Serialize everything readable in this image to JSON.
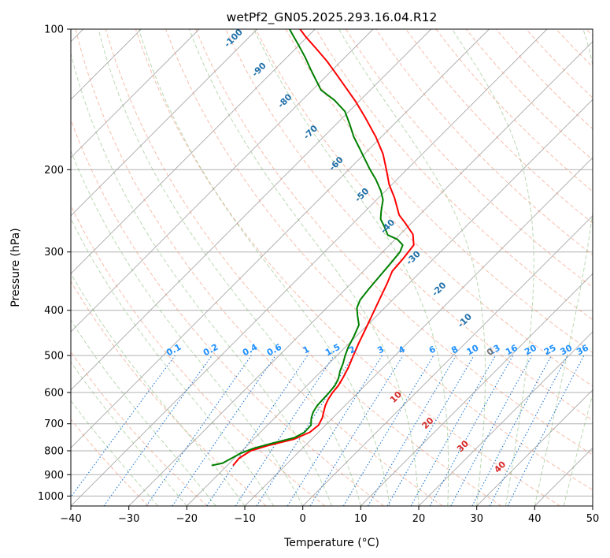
{
  "chart_data": {
    "type": "line",
    "title": "wetPf2_GN05.2025.293.16.04.R12",
    "xlabel": "Temperature (°C)",
    "ylabel": "Pressure (hPa)",
    "xlim": [
      -40,
      50
    ],
    "ylim": [
      1050,
      100
    ],
    "x_ticks": [
      -40,
      -30,
      -20,
      -10,
      0,
      10,
      20,
      30,
      40,
      50
    ],
    "x_tick_labels": [
      "−40",
      "−30",
      "−20",
      "−10",
      "0",
      "10",
      "20",
      "30",
      "40",
      "50"
    ],
    "y_ticks": [
      100,
      200,
      300,
      400,
      500,
      600,
      700,
      800,
      900,
      1000
    ],
    "y_tick_labels": [
      "100",
      "200",
      "300",
      "400",
      "500",
      "600",
      "700",
      "800",
      "900",
      "1000"
    ],
    "skew": 45,
    "series": [
      {
        "name": "Temperature",
        "color": "#ff0000",
        "points": [
          [
            -19.0,
            860
          ],
          [
            -19.2,
            830
          ],
          [
            -18.5,
            800
          ],
          [
            -16.5,
            780
          ],
          [
            -13.0,
            755
          ],
          [
            -11.5,
            730
          ],
          [
            -11.2,
            705
          ],
          [
            -11.8,
            680
          ],
          [
            -12.6,
            660
          ],
          [
            -13.4,
            640
          ],
          [
            -14.0,
            620
          ],
          [
            -14.4,
            600
          ],
          [
            -14.6,
            580
          ],
          [
            -15.1,
            560
          ],
          [
            -16.0,
            530
          ],
          [
            -17.2,
            500
          ],
          [
            -18.4,
            470
          ],
          [
            -19.6,
            440
          ],
          [
            -20.9,
            410
          ],
          [
            -22.3,
            380
          ],
          [
            -23.8,
            350
          ],
          [
            -25.0,
            330
          ],
          [
            -25.3,
            310
          ],
          [
            -25.8,
            290
          ],
          [
            -27.8,
            275
          ],
          [
            -31.1,
            260
          ],
          [
            -33.5,
            250
          ],
          [
            -37.2,
            230
          ],
          [
            -40.5,
            215
          ],
          [
            -43.5,
            200
          ],
          [
            -46.8,
            185
          ],
          [
            -51.0,
            170
          ],
          [
            -56.0,
            155
          ],
          [
            -60.5,
            143
          ],
          [
            -64.8,
            133
          ],
          [
            -68.5,
            125
          ],
          [
            -72.5,
            117
          ],
          [
            -76.5,
            110
          ],
          [
            -80.2,
            104
          ],
          [
            -82.6,
            100
          ]
        ]
      },
      {
        "name": "Dewpoint",
        "color": "#008000",
        "points": [
          [
            -22.7,
            860
          ],
          [
            -21.2,
            850
          ],
          [
            -20.5,
            830
          ],
          [
            -19.8,
            810
          ],
          [
            -18.4,
            790
          ],
          [
            -16.0,
            770
          ],
          [
            -13.2,
            750
          ],
          [
            -12.4,
            730
          ],
          [
            -12.5,
            705
          ],
          [
            -13.7,
            680
          ],
          [
            -14.4,
            660
          ],
          [
            -14.8,
            640
          ],
          [
            -14.9,
            620
          ],
          [
            -15.0,
            600
          ],
          [
            -15.2,
            580
          ],
          [
            -15.8,
            560
          ],
          [
            -16.8,
            540
          ],
          [
            -17.6,
            520
          ],
          [
            -18.6,
            500
          ],
          [
            -19.5,
            480
          ],
          [
            -20.4,
            455
          ],
          [
            -21.5,
            430
          ],
          [
            -23.4,
            410
          ],
          [
            -24.8,
            395
          ],
          [
            -25.6,
            380
          ],
          [
            -26.0,
            360
          ],
          [
            -26.3,
            340
          ],
          [
            -26.6,
            320
          ],
          [
            -27.0,
            300
          ],
          [
            -27.7,
            290
          ],
          [
            -29.6,
            282
          ],
          [
            -32.0,
            276
          ],
          [
            -34.0,
            265
          ],
          [
            -36.0,
            255
          ],
          [
            -37.3,
            245
          ],
          [
            -38.9,
            232
          ],
          [
            -40.8,
            222
          ],
          [
            -43.6,
            210
          ],
          [
            -46.3,
            200
          ],
          [
            -49.0,
            190
          ],
          [
            -51.8,
            180
          ],
          [
            -54.8,
            170
          ],
          [
            -57.6,
            160
          ],
          [
            -60.7,
            150
          ],
          [
            -64.4,
            142
          ],
          [
            -68.5,
            135
          ],
          [
            -71.3,
            128
          ],
          [
            -73.8,
            122
          ],
          [
            -76.8,
            115
          ],
          [
            -80.2,
            108
          ],
          [
            -82.8,
            103
          ],
          [
            -84.4,
            100
          ]
        ]
      }
    ],
    "mixing_ratio_labels": [
      "0.1",
      "0.2",
      "0.4",
      "0.6",
      "1",
      "1.5",
      "2",
      "3",
      "4",
      "6",
      "8",
      "10",
      "13",
      "16",
      "20",
      "25",
      "30",
      "36"
    ],
    "mixing_ratio_values": [
      0.1,
      0.2,
      0.4,
      0.6,
      1,
      1.5,
      2,
      3,
      4,
      6,
      8,
      10,
      13,
      16,
      20,
      25,
      30,
      36
    ],
    "dry_adiabat_labels": [
      "-100",
      "-90",
      "-80",
      "-70",
      "-60",
      "-50",
      "-40",
      "-30",
      "-20",
      "-10",
      "0"
    ],
    "dry_adiabat_values": [
      -100,
      -90,
      -80,
      -70,
      -60,
      -50,
      -40,
      -30,
      -20,
      -10,
      0
    ],
    "moist_adiabat_labels": [
      "10",
      "20",
      "30",
      "40"
    ],
    "moist_adiabat_values": [
      10,
      20,
      30,
      40
    ]
  }
}
